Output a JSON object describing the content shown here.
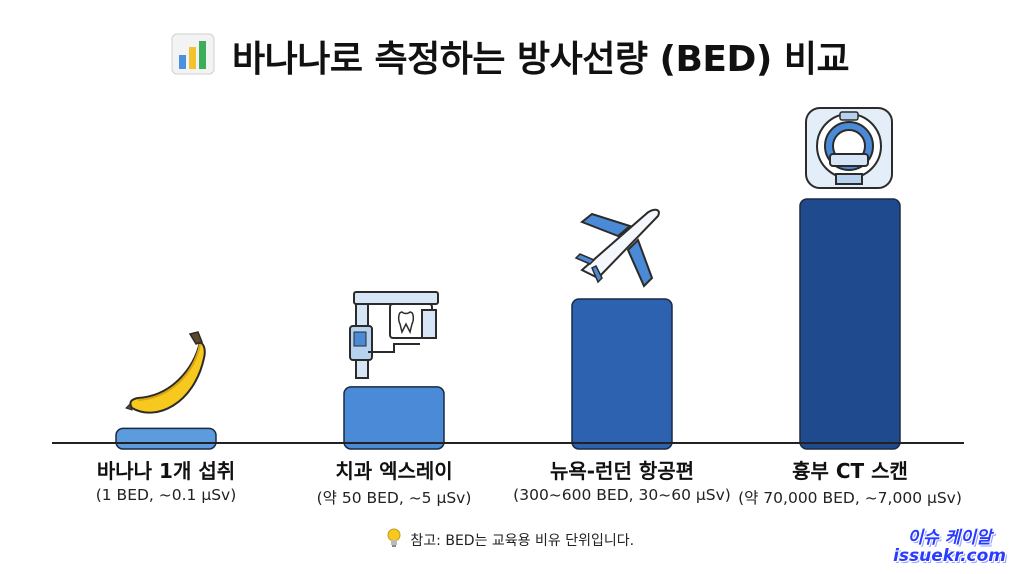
{
  "title": "바나나로 측정하는 방사선량 (BED) 비교",
  "title_icon": "bar-chart-icon",
  "chart_data": {
    "type": "bar",
    "title": "바나나로 측정하는 방사선량 (BED) 비교",
    "categories": [
      "바나나 1개 섭취",
      "치과 엑스레이",
      "뉴욕-런던 항공편",
      "흉부 CT 스캔"
    ],
    "sublabels": [
      "(1 BED, ~0.1 µSv)",
      "(약 50 BED, ~5 µSv)",
      "(300~600 BED, 30~60 µSv)",
      "(약 70,000 BED, ~7,000 µSv)"
    ],
    "icons": [
      "banana-icon",
      "dental-xray-icon",
      "airplane-icon",
      "ct-scanner-icon"
    ],
    "values": [
      1,
      50,
      450,
      70000
    ],
    "level": [
      0.06,
      0.23,
      0.59,
      1.0
    ],
    "colors": [
      "#5b9bde",
      "#4a8ad6",
      "#2d62b0",
      "#1f4a8e"
    ],
    "grid": false,
    "legend": "none"
  },
  "note": {
    "icon": "lightbulb-icon",
    "text": "참고: BED는 교육용 비유 단위입니다."
  },
  "watermark": {
    "line1": "이슈 케이알",
    "line2": "issuekr.com"
  }
}
